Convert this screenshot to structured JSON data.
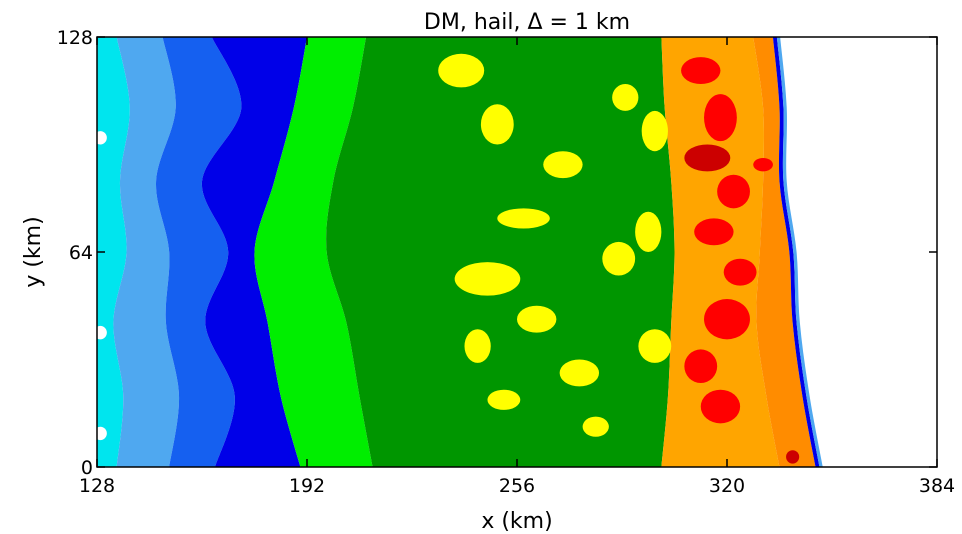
{
  "chart_data": {
    "type": "heatmap",
    "title": "DM,  hail,  Δ  =  1  km",
    "xlabel": "x (km)",
    "ylabel": "y (km)",
    "xlim": [
      128,
      384
    ],
    "ylim": [
      0,
      128
    ],
    "xticks": [
      128,
      192,
      256,
      320,
      384
    ],
    "yticks": [
      0,
      64,
      128
    ],
    "grid": false,
    "legend": "none",
    "colors": {
      "background": "#ffffff",
      "levels": [
        "#ffffff",
        "#00e5ee",
        "#4fa8f0",
        "#1560f0",
        "#0000e8",
        "#00ee00",
        "#009600",
        "#ffff00",
        "#ffa500",
        "#ff0000",
        "#cc0000"
      ]
    },
    "regions": [
      {
        "name": "cyan",
        "color": "#00e5ee",
        "x_left": [
          128,
          128,
          128,
          128,
          128,
          128,
          128
        ],
        "x_right": [
          134,
          138,
          135,
          137,
          133,
          136,
          134
        ]
      },
      {
        "name": "light-blue",
        "color": "#4fa8f0",
        "x_left": [
          134,
          138,
          135,
          137,
          133,
          136,
          134
        ],
        "x_right": [
          148,
          152,
          146,
          150,
          149,
          153,
          150
        ]
      },
      {
        "name": "blue",
        "color": "#1560f0",
        "x_left": [
          148,
          152,
          146,
          150,
          149,
          153,
          150
        ],
        "x_right": [
          163,
          172,
          160,
          168,
          161,
          170,
          164
        ]
      },
      {
        "name": "dark-blue",
        "color": "#0000e8",
        "x_left": [
          163,
          172,
          160,
          168,
          161,
          170,
          164
        ],
        "x_right": [
          192,
          188,
          182,
          176,
          180,
          184,
          190
        ]
      },
      {
        "name": "green",
        "color": "#00ee00",
        "x_left": [
          192,
          188,
          182,
          176,
          180,
          184,
          190
        ],
        "x_right": [
          210,
          206,
          200,
          198,
          204,
          208,
          212
        ]
      },
      {
        "name": "dark-green",
        "color": "#009600",
        "x_left": [
          210,
          206,
          200,
          198,
          204,
          208,
          212
        ],
        "x_right": [
          300,
          301,
          303,
          304,
          303,
          302,
          300
        ]
      },
      {
        "name": "orange",
        "color": "#ffa500",
        "x_left": [
          300,
          301,
          303,
          304,
          303,
          302,
          300
        ],
        "x_right": [
          328,
          331,
          331,
          330,
          329,
          332,
          336
        ]
      }
    ],
    "front_x": [
      334,
      336,
      336,
      339,
      340,
      343,
      347
    ],
    "y_samples": [
      128,
      107,
      85,
      64,
      43,
      21,
      0
    ],
    "hail_cores": [
      {
        "x": 312,
        "y": 118,
        "rx": 6,
        "ry": 4,
        "color": "#ff0000"
      },
      {
        "x": 318,
        "y": 104,
        "rx": 5,
        "ry": 7,
        "color": "#ff0000"
      },
      {
        "x": 314,
        "y": 92,
        "rx": 7,
        "ry": 4,
        "color": "#cc0000"
      },
      {
        "x": 322,
        "y": 82,
        "rx": 5,
        "ry": 5,
        "color": "#ff0000"
      },
      {
        "x": 316,
        "y": 70,
        "rx": 6,
        "ry": 4,
        "color": "#ff0000"
      },
      {
        "x": 324,
        "y": 58,
        "rx": 5,
        "ry": 4,
        "color": "#ff0000"
      },
      {
        "x": 320,
        "y": 44,
        "rx": 7,
        "ry": 6,
        "color": "#ff0000"
      },
      {
        "x": 312,
        "y": 30,
        "rx": 5,
        "ry": 5,
        "color": "#ff0000"
      },
      {
        "x": 318,
        "y": 18,
        "rx": 6,
        "ry": 5,
        "color": "#ff0000"
      },
      {
        "x": 340,
        "y": 3,
        "rx": 2,
        "ry": 2,
        "color": "#cc0000"
      },
      {
        "x": 331,
        "y": 90,
        "rx": 3,
        "ry": 2,
        "color": "#ff0000"
      }
    ],
    "yellow_patches": [
      {
        "x": 239,
        "y": 118,
        "rx": 7,
        "ry": 5
      },
      {
        "x": 250,
        "y": 102,
        "rx": 5,
        "ry": 6
      },
      {
        "x": 270,
        "y": 90,
        "rx": 6,
        "ry": 4
      },
      {
        "x": 258,
        "y": 74,
        "rx": 8,
        "ry": 3
      },
      {
        "x": 247,
        "y": 56,
        "rx": 10,
        "ry": 5
      },
      {
        "x": 262,
        "y": 44,
        "rx": 6,
        "ry": 4
      },
      {
        "x": 244,
        "y": 36,
        "rx": 4,
        "ry": 5
      },
      {
        "x": 275,
        "y": 28,
        "rx": 6,
        "ry": 4
      },
      {
        "x": 252,
        "y": 20,
        "rx": 5,
        "ry": 3
      },
      {
        "x": 287,
        "y": 62,
        "rx": 5,
        "ry": 5
      },
      {
        "x": 289,
        "y": 110,
        "rx": 4,
        "ry": 4
      },
      {
        "x": 280,
        "y": 12,
        "rx": 4,
        "ry": 3
      },
      {
        "x": 298,
        "y": 36,
        "rx": 5,
        "ry": 5
      },
      {
        "x": 298,
        "y": 100,
        "rx": 4,
        "ry": 6
      },
      {
        "x": 296,
        "y": 70,
        "rx": 4,
        "ry": 6
      }
    ],
    "white_gaps": [
      {
        "x": 129,
        "y": 40,
        "rx": 2,
        "ry": 2
      },
      {
        "x": 129,
        "y": 98,
        "rx": 2,
        "ry": 2
      },
      {
        "x": 129,
        "y": 10,
        "rx": 2,
        "ry": 2
      }
    ]
  }
}
